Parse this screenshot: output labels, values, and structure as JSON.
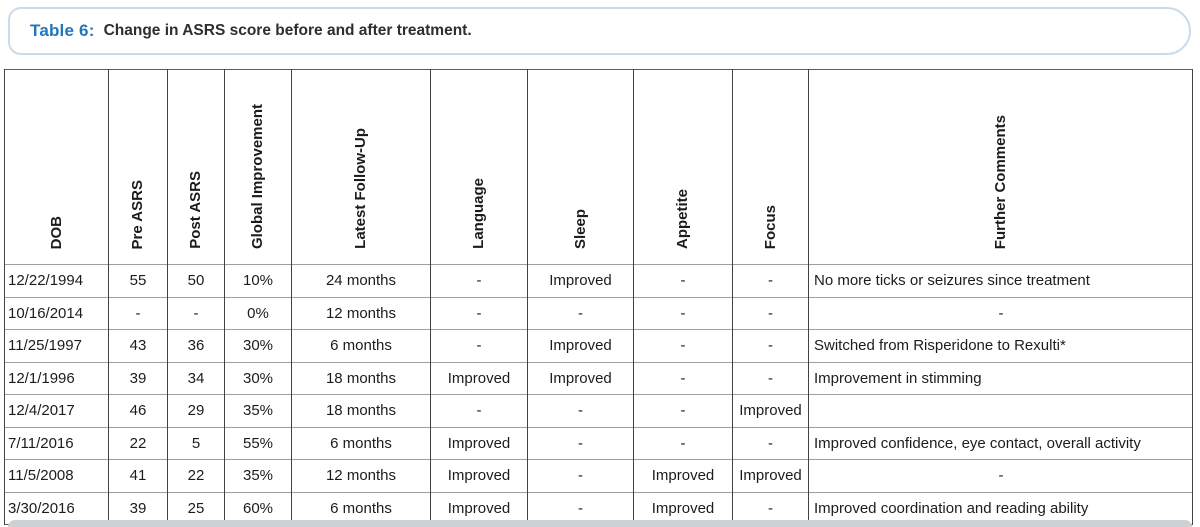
{
  "caption": {
    "label": "Table 6:",
    "text": "Change in ASRS score before and after treatment."
  },
  "table": {
    "columns": [
      "DOB",
      "Pre ASRS",
      "Post ASRS",
      "Global Improvement",
      "Latest Follow-Up",
      "Language",
      "Sleep",
      "Appetite",
      "Focus",
      "Further Comments"
    ],
    "rows": [
      [
        "12/22/1994",
        "55",
        "50",
        "10%",
        "24 months",
        "-",
        "Improved",
        "-",
        "-",
        "No more ticks or seizures since treatment"
      ],
      [
        "10/16/2014",
        "-",
        "-",
        "0%",
        "12 months",
        "-",
        "-",
        "-",
        "-",
        "-"
      ],
      [
        "11/25/1997",
        "43",
        "36",
        "30%",
        "6 months",
        "-",
        "Improved",
        "-",
        "-",
        "Switched from Risperidone to Rexulti*"
      ],
      [
        "12/1/1996",
        "39",
        "34",
        "30%",
        "18 months",
        "Improved",
        "Improved",
        "-",
        "-",
        "Improvement in stimming"
      ],
      [
        "12/4/2017",
        "46",
        "29",
        "35%",
        "18 months",
        "-",
        "-",
        "-",
        "Improved",
        ""
      ],
      [
        "7/11/2016",
        "22",
        "5",
        "55%",
        "6 months",
        "Improved",
        "-",
        "-",
        "-",
        "Improved confidence, eye contact, overall activity"
      ],
      [
        "11/5/2008",
        "41",
        "22",
        "35%",
        "12 months",
        "Improved",
        "-",
        "Improved",
        "Improved",
        "-"
      ],
      [
        "3/30/2016",
        "39",
        "25",
        "60%",
        "6 months",
        "Improved",
        "-",
        "Improved",
        "-",
        "Improved coordination and reading ability"
      ]
    ]
  },
  "colors": {
    "accent_blue": "#2176bd",
    "caption_border": "#cbdbea",
    "border_dark": "#424242",
    "border_light": "#9aa0a4",
    "text": "#1c1c1c",
    "bottom_bar": "#ccd1d5"
  }
}
